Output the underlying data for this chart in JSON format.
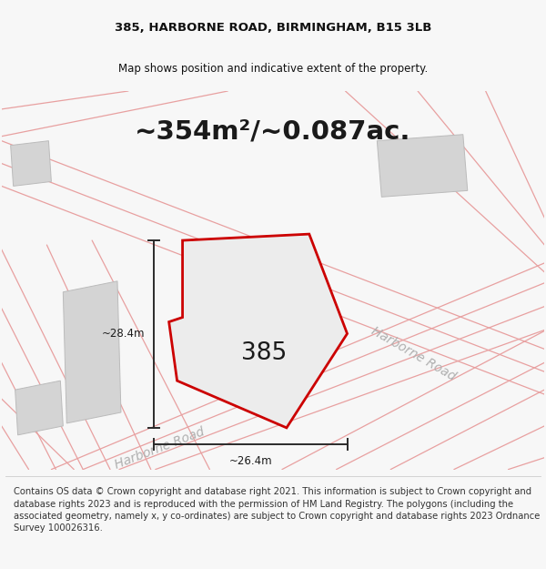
{
  "title_line1": "385, HARBORNE ROAD, BIRMINGHAM, B15 3LB",
  "title_line2": "Map shows position and indicative extent of the property.",
  "area_text": "~354m²/~0.087ac.",
  "property_number": "385",
  "dim_width": "~26.4m",
  "dim_height": "~28.4m",
  "road_label_bottom": "Harborne Road",
  "road_label_right": "Harborne Road",
  "footer_text": "Contains OS data © Crown copyright and database right 2021. This information is subject to Crown copyright and database rights 2023 and is reproduced with the permission of HM Land Registry. The polygons (including the associated geometry, namely x, y co-ordinates) are subject to Crown copyright and database rights 2023 Ordnance Survey 100026316.",
  "bg_color": "#f7f7f7",
  "map_bg": "#ffffff",
  "property_fill": "#ececec",
  "property_edge": "#cc0000",
  "road_line_color": "#e8a0a0",
  "building_fill": "#d4d4d4",
  "building_edge": "#bbbbbb",
  "dim_line_color": "#2a2a2a",
  "title_fontsize": 9.5,
  "subtitle_fontsize": 8.5,
  "area_fontsize": 21,
  "number_fontsize": 19,
  "road_label_fontsize": 10,
  "footer_fontsize": 7.2
}
